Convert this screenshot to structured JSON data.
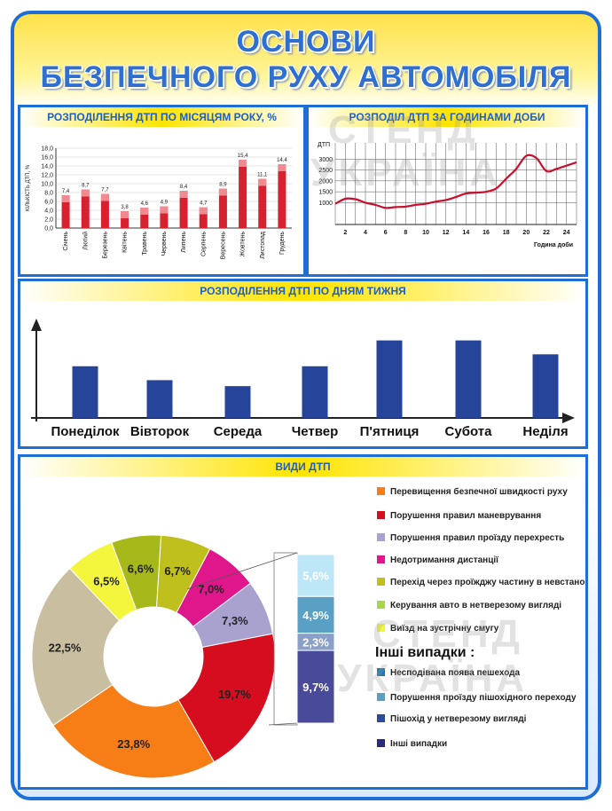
{
  "title": {
    "line1": "ОСНОВИ",
    "line2": "БЕЗПЕЧНОГО РУХУ АВТОМОБІЛЯ"
  },
  "watermark": {
    "line1": "СТЕНД",
    "line2": "УКРАЇНА"
  },
  "months_panel": {
    "heading": "РОЗПОДІЛЕННЯ ДТП ПО МІСЯЦЯМ РОКУ, %"
  },
  "hours_panel": {
    "heading": "РОЗПОДІЛ ДТП ЗА ГОДИНАМИ ДОБИ"
  },
  "weekdays_panel": {
    "heading": "РОЗПОДІЛЕННЯ ДТП ПО ДНЯМ ТИЖНЯ"
  },
  "types_panel": {
    "heading": "ВИДИ ДТП"
  },
  "chart_data": [
    {
      "type": "bar",
      "title": "РОЗПОДІЛЕННЯ ДТП ПО МІСЯЦЯМ РОКУ, %",
      "ylabel": "КІЛЬКІСТЬ ДТП, %",
      "ylim": [
        0,
        18
      ],
      "yticks": [
        "0,0",
        "2,0",
        "4,0",
        "6,0",
        "8,0",
        "10,0",
        "12,0",
        "14,0",
        "16,0",
        "18,0"
      ],
      "ytick_values": [
        0,
        2,
        4,
        6,
        8,
        10,
        12,
        14,
        16,
        18
      ],
      "grid": true,
      "categories": [
        "Січень",
        "Лютий",
        "Березень",
        "Квітень",
        "Травень",
        "Червень",
        "Липень",
        "Серпень",
        "Вересень",
        "Жовтень",
        "Листопад",
        "Грудень"
      ],
      "values": [
        7.4,
        8.7,
        7.7,
        3.8,
        4.6,
        4.9,
        8.4,
        4.7,
        8.9,
        15.4,
        11.1,
        14.4
      ],
      "labels": [
        "7,4",
        "8,7",
        "7,7",
        "3,8",
        "4,6",
        "4,9",
        "8,4",
        "4,7",
        "8,9",
        "15,4",
        "11,1",
        "14,4"
      ],
      "colors": {
        "bar": "#d8212e",
        "bar_top": "#f6a5aa"
      }
    },
    {
      "type": "line",
      "title": "РОЗПОДІЛ ДТП ЗА ГОДИНАМИ ДОБИ",
      "ylabel": "ДТП",
      "xlabel": "Година доби",
      "ylim": [
        0,
        3500
      ],
      "xlim": [
        1,
        25
      ],
      "grid": true,
      "yticks": [
        "1000",
        "1500",
        "2000",
        "2500",
        "3000"
      ],
      "ytick_values": [
        1000,
        1500,
        2000,
        2500,
        3000
      ],
      "xticks": [
        "2",
        "4",
        "6",
        "8",
        "10",
        "12",
        "14",
        "16",
        "18",
        "20",
        "22",
        "24"
      ],
      "xtick_values": [
        2,
        4,
        6,
        8,
        10,
        12,
        14,
        16,
        18,
        20,
        22,
        24
      ],
      "x": [
        1,
        2,
        3,
        4,
        5,
        6,
        7,
        8,
        9,
        10,
        11,
        12,
        13,
        14,
        15,
        16,
        17,
        18,
        19,
        20,
        21,
        22,
        23,
        24,
        25
      ],
      "y": [
        950,
        1180,
        1160,
        1000,
        900,
        760,
        800,
        820,
        900,
        950,
        1050,
        1120,
        1260,
        1420,
        1460,
        1500,
        1650,
        2100,
        2550,
        3150,
        3050,
        2450,
        2550,
        2700,
        2850
      ],
      "color": "#c8102e"
    },
    {
      "type": "bar",
      "title": "РОЗПОДІЛЕННЯ ДТП ПО ДНЯМ ТИЖНЯ",
      "categories": [
        "Понеділок",
        "Вівторок",
        "Середа",
        "Четвер",
        "П'ятниця",
        "Субота",
        "Неділя"
      ],
      "values": [
        52,
        38,
        32,
        52,
        78,
        78,
        64
      ],
      "ylim": [
        0,
        100
      ],
      "color": "#26449a"
    },
    {
      "type": "pie",
      "title": "ВИДИ ДТП",
      "labels": [
        "23,8%",
        "22,5%",
        "6,5%",
        "6,6%",
        "6,7%",
        "7,0%",
        "7,3%",
        "19,7%"
      ],
      "values": [
        23.8,
        22.5,
        6.5,
        6.6,
        6.7,
        7.0,
        7.3,
        19.7
      ],
      "colors": [
        "#f77d17",
        "#c9bfa0",
        "#f4f53d",
        "#a7b81b",
        "#bfbf1e",
        "#e0178a",
        "#a9a2cf",
        "#d60d1e"
      ],
      "breakdown": {
        "labels": [
          "5,6%",
          "4,9%",
          "2,3%",
          "9,7%"
        ],
        "values": [
          5.6,
          4.9,
          2.3,
          9.7
        ],
        "colors": [
          "#bde6f7",
          "#5a9fc4",
          "#8aa0c7",
          "#4a4a9a"
        ]
      },
      "legend": [
        {
          "label": "Перевищення безпечної швидкості руху",
          "color": "#f77d17"
        },
        {
          "label": "Порушення правил маневрування",
          "color": "#d60d1e"
        },
        {
          "label": "Порушення правил проїзду перехресть",
          "color": "#a9a2cf"
        },
        {
          "label": "Недотримання дистанції",
          "color": "#e0178a"
        },
        {
          "label": "Перехід через проїжджу частину в невстановленому місці",
          "color": "#bfbf1e"
        },
        {
          "label": "Керування авто в нетверезому вигляді",
          "color": "#a7d84b"
        },
        {
          "label": "Виїзд на зустрічну смугу",
          "color": "#f4f53d"
        },
        {
          "label": "Несподівана поява пешехода",
          "color": "#1e7ab4"
        },
        {
          "label": "Порушення проїзду пішохідного переходу",
          "color": "#5a9fc4"
        },
        {
          "label": "Пішохід у нетверезому вигляді",
          "color": "#2a4a9a"
        },
        {
          "label": "Інші випадки",
          "color": "#2a2a7a"
        }
      ],
      "legend_subheading": "Інші випадки :"
    }
  ]
}
